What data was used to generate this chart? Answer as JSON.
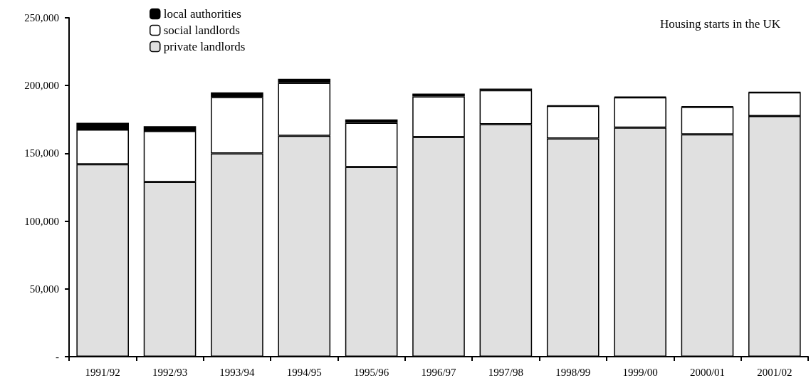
{
  "chart_data": {
    "type": "bar",
    "title": "Housing starts in the UK",
    "stacked": true,
    "categories": [
      "1991/92",
      "1992/93",
      "1993/94",
      "1994/95",
      "1995/96",
      "1996/97",
      "1997/98",
      "1998/99",
      "1999/00",
      "2000/01",
      "2001/02"
    ],
    "series": [
      {
        "name": "private landlords",
        "color": "#e0e0e0",
        "values": [
          142000,
          129000,
          150000,
          163000,
          140000,
          162000,
          171500,
          161000,
          169000,
          164000,
          177500
        ]
      },
      {
        "name": "social landlords",
        "color": "#ffffff",
        "values": [
          25500,
          37500,
          41500,
          39000,
          32500,
          30000,
          25000,
          24000,
          22300,
          20200,
          17500
        ]
      },
      {
        "name": "local authorities",
        "color": "#000000",
        "values": [
          5000,
          3500,
          3500,
          3000,
          2500,
          2000,
          1200,
          300,
          500,
          500,
          300
        ]
      }
    ],
    "ylim": [
      0,
      250000
    ],
    "yticks": [
      {
        "value": 0,
        "label": "-"
      },
      {
        "value": 50000,
        "label": "50,000"
      },
      {
        "value": 100000,
        "label": "100,000"
      },
      {
        "value": 150000,
        "label": "150,000"
      },
      {
        "value": 200000,
        "label": "200,000"
      },
      {
        "value": 250000,
        "label": "250,000"
      }
    ],
    "grid": false,
    "legend": "top left"
  }
}
